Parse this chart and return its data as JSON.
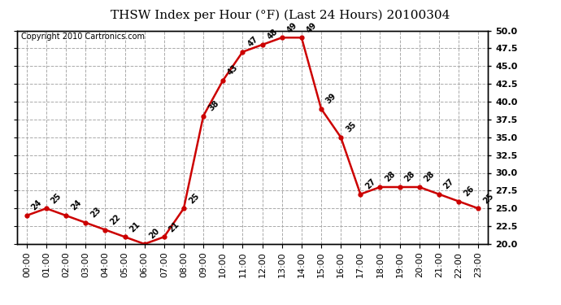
{
  "title": "THSW Index per Hour (°F) (Last 24 Hours) 20100304",
  "copyright": "Copyright 2010 Cartronics.com",
  "hours": [
    "00:00",
    "01:00",
    "02:00",
    "03:00",
    "04:00",
    "05:00",
    "06:00",
    "07:00",
    "08:00",
    "09:00",
    "10:00",
    "11:00",
    "12:00",
    "13:00",
    "14:00",
    "15:00",
    "16:00",
    "17:00",
    "18:00",
    "19:00",
    "20:00",
    "21:00",
    "22:00",
    "23:00"
  ],
  "values": [
    24,
    25,
    24,
    23,
    22,
    21,
    20,
    21,
    25,
    38,
    43,
    47,
    48,
    49,
    49,
    39,
    35,
    27,
    28,
    28,
    28,
    27,
    26,
    25
  ],
  "line_color": "#cc0000",
  "marker_color": "#cc0000",
  "bg_color": "#ffffff",
  "plot_bg_color": "#ffffff",
  "grid_color": "#aaaaaa",
  "ylim": [
    20.0,
    50.0
  ],
  "yticks": [
    20.0,
    22.5,
    25.0,
    27.5,
    30.0,
    32.5,
    35.0,
    37.5,
    40.0,
    42.5,
    45.0,
    47.5,
    50.0
  ],
  "title_fontsize": 11,
  "label_fontsize": 7,
  "tick_fontsize": 8,
  "copyright_fontsize": 7
}
